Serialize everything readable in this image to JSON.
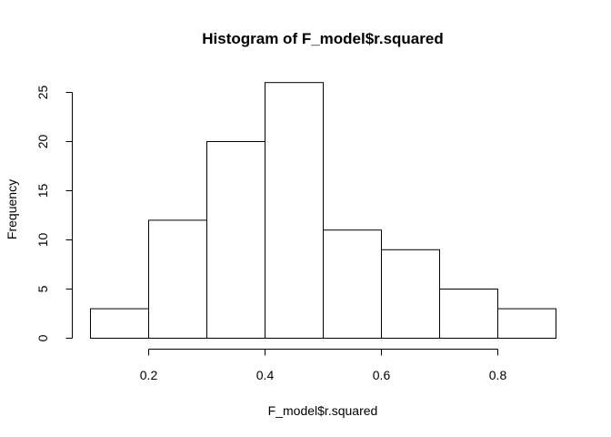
{
  "chart_data": {
    "type": "bar",
    "title": "Histogram of F_model$r.squared",
    "xlabel": "F_model$r.squared",
    "ylabel": "Frequency",
    "bins": [
      {
        "start": 0.1,
        "end": 0.2,
        "count": 3
      },
      {
        "start": 0.2,
        "end": 0.3,
        "count": 12
      },
      {
        "start": 0.3,
        "end": 0.4,
        "count": 20
      },
      {
        "start": 0.4,
        "end": 0.5,
        "count": 26
      },
      {
        "start": 0.5,
        "end": 0.6,
        "count": 11
      },
      {
        "start": 0.6,
        "end": 0.7,
        "count": 9
      },
      {
        "start": 0.7,
        "end": 0.8,
        "count": 5
      },
      {
        "start": 0.8,
        "end": 0.9,
        "count": 3
      }
    ],
    "xlim": [
      0.1,
      0.9
    ],
    "ylim": [
      0,
      26
    ],
    "x_ticks": [
      "0.2",
      "0.4",
      "0.6",
      "0.8"
    ],
    "y_ticks": [
      "0",
      "5",
      "10",
      "15",
      "20",
      "25"
    ],
    "grid": false,
    "legend": "none"
  }
}
